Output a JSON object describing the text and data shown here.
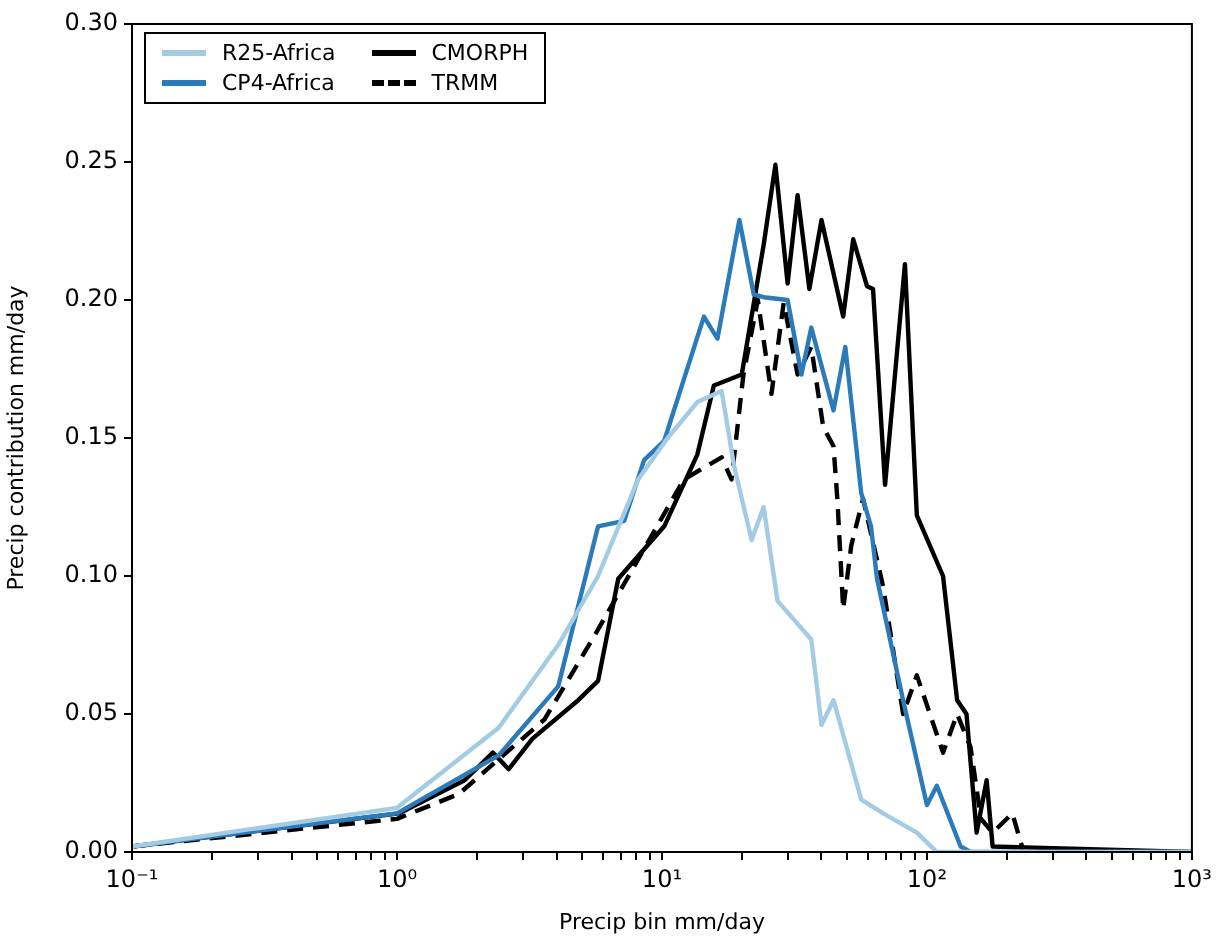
{
  "chart_data": {
    "type": "line",
    "xlabel": "Precip bin mm/day",
    "ylabel": "Precip contribution mm/day",
    "log": "x",
    "grid": false,
    "legend": "top left",
    "marker": "none",
    "xlim": [
      0.1,
      1000
    ],
    "ylim": [
      0,
      0.3
    ],
    "xticks": [
      {
        "value": 0.1,
        "label": "10⁻¹"
      },
      {
        "value": 0.2,
        "label": null
      },
      {
        "value": 0.3,
        "label": null
      },
      {
        "value": 0.4,
        "label": null
      },
      {
        "value": 0.5,
        "label": null
      },
      {
        "value": 0.6,
        "label": null
      },
      {
        "value": 0.7,
        "label": null
      },
      {
        "value": 0.8,
        "label": null
      },
      {
        "value": 0.9,
        "label": null
      },
      {
        "value": 1,
        "label": "10⁰"
      },
      {
        "value": 2,
        "label": null
      },
      {
        "value": 3,
        "label": null
      },
      {
        "value": 4,
        "label": null
      },
      {
        "value": 5,
        "label": null
      },
      {
        "value": 6,
        "label": null
      },
      {
        "value": 7,
        "label": null
      },
      {
        "value": 8,
        "label": null
      },
      {
        "value": 9,
        "label": null
      },
      {
        "value": 10,
        "label": "10¹"
      },
      {
        "value": 20,
        "label": null
      },
      {
        "value": 30,
        "label": null
      },
      {
        "value": 40,
        "label": null
      },
      {
        "value": 50,
        "label": null
      },
      {
        "value": 60,
        "label": null
      },
      {
        "value": 70,
        "label": null
      },
      {
        "value": 80,
        "label": null
      },
      {
        "value": 90,
        "label": null
      },
      {
        "value": 100,
        "label": "10²"
      },
      {
        "value": 200,
        "label": null
      },
      {
        "value": 300,
        "label": null
      },
      {
        "value": 400,
        "label": null
      },
      {
        "value": 500,
        "label": null
      },
      {
        "value": 600,
        "label": null
      },
      {
        "value": 700,
        "label": null
      },
      {
        "value": 800,
        "label": null
      },
      {
        "value": 900,
        "label": null
      },
      {
        "value": 1000,
        "label": "10³"
      }
    ],
    "yticks": [
      {
        "value": 0,
        "label": "0.00"
      },
      {
        "value": 0.05,
        "label": "0.05"
      },
      {
        "value": 0.1,
        "label": "0.10"
      },
      {
        "value": 0.15,
        "label": "0.15"
      },
      {
        "value": 0.2,
        "label": "0.20"
      },
      {
        "value": 0.25,
        "label": "0.25"
      },
      {
        "value": 0.3,
        "label": "0.30"
      }
    ],
    "series": [
      {
        "name": "R25-Africa",
        "color": "#a3cbe3",
        "line_style": "solid",
        "x": [
          0.1,
          1,
          2.42,
          4.06,
          5.74,
          8.13,
          10.5,
          13.6,
          16.8,
          18.7,
          21.8,
          24.2,
          27.3,
          36.6,
          40,
          44.4,
          56.5,
          68.4,
          91.6,
          109,
          1000
        ],
        "values": [
          0.002,
          0.016,
          0.045,
          0.075,
          0.1,
          0.135,
          0.15,
          0.163,
          0.167,
          0.14,
          0.113,
          0.125,
          0.091,
          0.077,
          0.046,
          0.055,
          0.019,
          0.014,
          0.007,
          0,
          0
        ]
      },
      {
        "name": "CP4-Africa",
        "color": "#2b7bba",
        "line_style": "solid",
        "x": [
          0.1,
          1,
          2.42,
          4.06,
          5.74,
          7.2,
          8.56,
          10.2,
          14.4,
          16.2,
          19.6,
          22.2,
          24.2,
          29.8,
          33.6,
          36.6,
          44.4,
          49.2,
          56.5,
          61.5,
          64.8,
          81.3,
          100,
          109,
          134,
          146,
          1000
        ],
        "values": [
          0.002,
          0.014,
          0.035,
          0.06,
          0.118,
          0.12,
          0.142,
          0.149,
          0.194,
          0.186,
          0.229,
          0.202,
          0.201,
          0.2,
          0.173,
          0.19,
          0.16,
          0.183,
          0.13,
          0.118,
          0.099,
          0.055,
          0.017,
          0.024,
          0.002,
          0,
          0
        ]
      },
      {
        "name": "CMORPH",
        "color": "#000000",
        "line_style": "solid",
        "x": [
          0.1,
          1.02,
          1.8,
          2.3,
          2.64,
          3.24,
          4.83,
          5.74,
          6.84,
          10.2,
          13.6,
          15.7,
          20,
          24.2,
          26.8,
          29.8,
          32.5,
          36,
          40,
          48.3,
          52.7,
          59.4,
          62.6,
          69.5,
          82.6,
          91.6,
          115,
          130,
          141,
          154,
          168,
          177,
          1000
        ],
        "values": [
          0.002,
          0.014,
          0.026,
          0.036,
          0.03,
          0.041,
          0.055,
          0.062,
          0.099,
          0.118,
          0.144,
          0.169,
          0.173,
          0.22,
          0.249,
          0.206,
          0.238,
          0.204,
          0.229,
          0.194,
          0.222,
          0.205,
          0.204,
          0.133,
          0.213,
          0.122,
          0.1,
          0.055,
          0.05,
          0.007,
          0.026,
          0.002,
          0
        ]
      },
      {
        "name": "TRMM",
        "color": "#000000",
        "line_style": "dashed",
        "x": [
          0.1,
          1,
          1.71,
          3.6,
          5.46,
          12.1,
          16.8,
          18.3,
          20.3,
          23,
          25.9,
          28.8,
          32.5,
          36.6,
          40.6,
          44.4,
          45.9,
          48.3,
          51.8,
          57.4,
          68.4,
          81.3,
          91.6,
          115,
          130,
          146,
          160,
          177,
          210,
          230
        ],
        "values": [
          0.002,
          0.012,
          0.021,
          0.048,
          0.077,
          0.135,
          0.143,
          0.135,
          0.173,
          0.2,
          0.166,
          0.199,
          0.173,
          0.183,
          0.154,
          0.147,
          0.128,
          0.088,
          0.111,
          0.128,
          0.096,
          0.05,
          0.064,
          0.036,
          0.05,
          0.038,
          0.012,
          0.007,
          0.014,
          0.001
        ]
      }
    ]
  }
}
